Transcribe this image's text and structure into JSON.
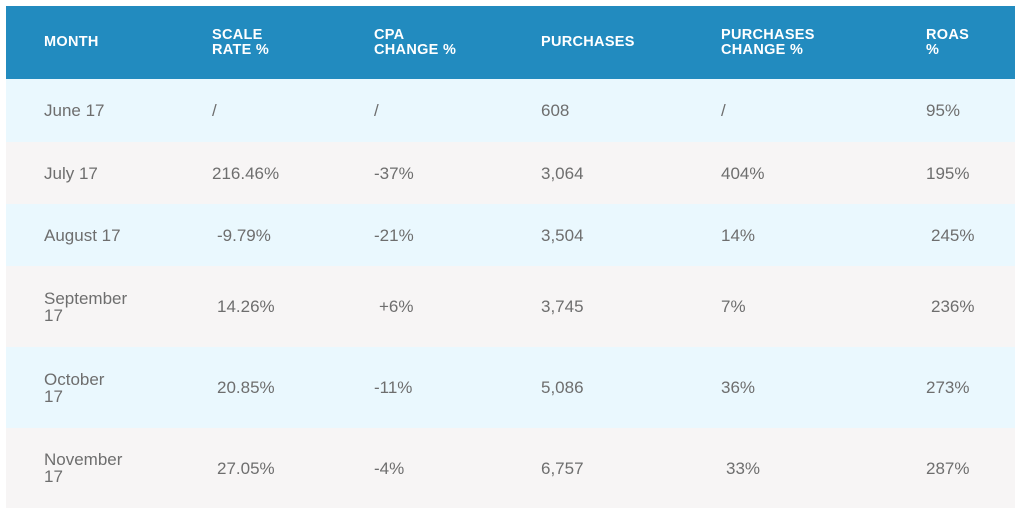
{
  "columns": [
    "MONTH",
    "SCALE\nRATE %",
    "CPA\nCHANGE %",
    "PURCHASES",
    "PURCHASES\nCHANGE %",
    "ROAS\n%"
  ],
  "rows": [
    [
      "June 17",
      "/",
      "/",
      "608",
      "/",
      "95%"
    ],
    [
      "July 17",
      "216.46%",
      "-37%",
      "3,064",
      "404%",
      "195%"
    ],
    [
      "August 17",
      " -9.79%",
      "-21%",
      "3,504",
      "14%",
      " 245%"
    ],
    [
      "September\n17",
      " 14.26%",
      " +6%",
      "3,745",
      "7%",
      " 236%"
    ],
    [
      "October\n17",
      " 20.85%",
      "-11%",
      "5,086",
      "36%",
      "273%"
    ],
    [
      "November\n17",
      " 27.05%",
      "-4%",
      "6,757",
      " 33%",
      "287%"
    ]
  ],
  "colors": {
    "header": "#228bbf",
    "row_light_blue": "#eaf8fe",
    "row_gray": "#f7f5f5"
  }
}
